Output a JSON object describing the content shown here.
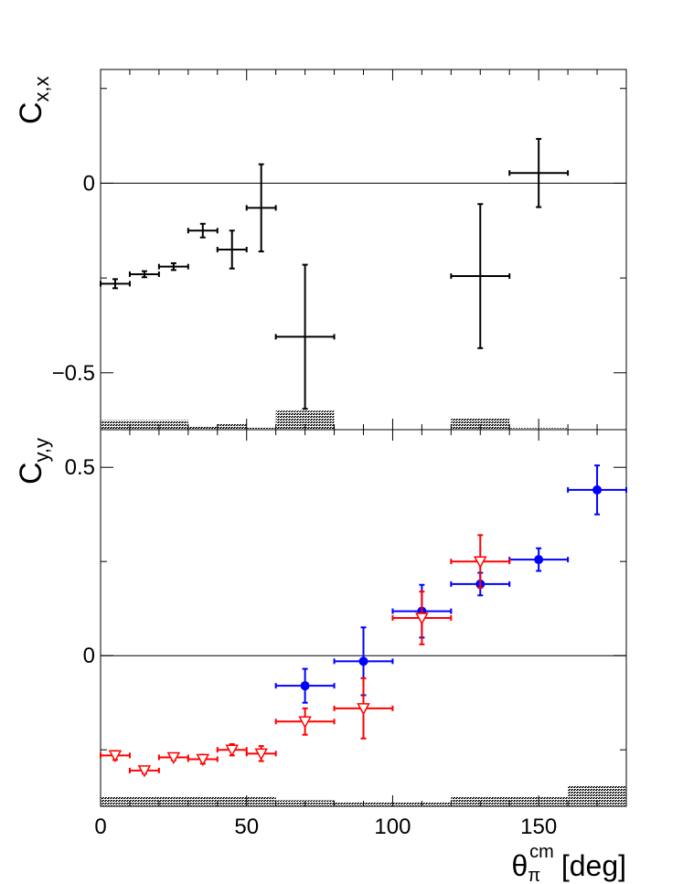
{
  "chart_data": [
    {
      "type": "scatter",
      "ylabel": "C",
      "ylabel_sub": "x,x",
      "xlim": [
        0,
        180
      ],
      "ylim": [
        -0.65,
        0.3
      ],
      "y_ticks": [
        -0.5,
        0
      ],
      "y_tick_labels": [
        "−0.5",
        "0"
      ],
      "zero_line": true,
      "series": [
        {
          "color": "#000000",
          "marker": "none",
          "points": [
            {
              "x": 5,
              "xerr": 5,
              "y": -0.265,
              "yerr": 0.012
            },
            {
              "x": 15,
              "xerr": 5,
              "y": -0.24,
              "yerr": 0.008
            },
            {
              "x": 25,
              "xerr": 5,
              "y": -0.22,
              "yerr": 0.009
            },
            {
              "x": 35,
              "xerr": 5,
              "y": -0.125,
              "yerr": 0.018
            },
            {
              "x": 45,
              "xerr": 5,
              "y": -0.175,
              "yerr": 0.05
            },
            {
              "x": 55,
              "xerr": 5,
              "y": -0.065,
              "yerr": 0.115
            },
            {
              "x": 70,
              "xerr": 10,
              "y": -0.405,
              "yerr": 0.19
            },
            {
              "x": 130,
              "xerr": 10,
              "y": -0.245,
              "yerr": 0.19
            },
            {
              "x": 150,
              "xerr": 10,
              "y": 0.027,
              "yerr": 0.09
            }
          ]
        }
      ],
      "systematics": [
        {
          "x0": 0,
          "x1": 30,
          "h": 0.025
        },
        {
          "x0": 30,
          "x1": 40,
          "h": 0.008
        },
        {
          "x0": 40,
          "x1": 50,
          "h": 0.016
        },
        {
          "x0": 50,
          "x1": 60,
          "h": 0.005
        },
        {
          "x0": 60,
          "x1": 80,
          "h": 0.05
        },
        {
          "x0": 120,
          "x1": 140,
          "h": 0.03
        },
        {
          "x0": 140,
          "x1": 160,
          "h": 0.004
        }
      ]
    },
    {
      "type": "scatter",
      "ylabel": "C",
      "ylabel_sub": "y,y",
      "xlabel": "θ",
      "xlabel_sub": "π",
      "xlabel_sup": "cm",
      "xlabel_unit": "[deg]",
      "xlim": [
        0,
        180
      ],
      "ylim": [
        -0.4,
        0.6
      ],
      "x_ticks": [
        0,
        50,
        100,
        150
      ],
      "y_ticks": [
        0,
        0.5
      ],
      "y_tick_labels": [
        "0",
        "0.5"
      ],
      "zero_line": true,
      "series": [
        {
          "color": "#0000ff",
          "marker": "filled-circle",
          "points": [
            {
              "x": 70,
              "xerr": 10,
              "y": -0.08,
              "yerr": 0.045
            },
            {
              "x": 90,
              "xerr": 10,
              "y": -0.015,
              "yerr": 0.09
            },
            {
              "x": 110,
              "xerr": 10,
              "y": 0.118,
              "yerr": 0.07
            },
            {
              "x": 130,
              "xerr": 10,
              "y": 0.19,
              "yerr": 0.03
            },
            {
              "x": 150,
              "xerr": 10,
              "y": 0.255,
              "yerr": 0.03
            },
            {
              "x": 170,
              "xerr": 10,
              "y": 0.44,
              "yerr": 0.065
            }
          ]
        },
        {
          "color": "#ff0000",
          "marker": "open-triangle-down",
          "points": [
            {
              "x": 5,
              "xerr": 5,
              "y": -0.265,
              "yerr": 0.012
            },
            {
              "x": 15,
              "xerr": 5,
              "y": -0.305,
              "yerr": 0.008
            },
            {
              "x": 25,
              "xerr": 5,
              "y": -0.27,
              "yerr": 0.008
            },
            {
              "x": 35,
              "xerr": 5,
              "y": -0.275,
              "yerr": 0.012
            },
            {
              "x": 45,
              "xerr": 5,
              "y": -0.25,
              "yerr": 0.015
            },
            {
              "x": 55,
              "xerr": 5,
              "y": -0.26,
              "yerr": 0.02
            },
            {
              "x": 70,
              "xerr": 10,
              "y": -0.175,
              "yerr": 0.035
            },
            {
              "x": 90,
              "xerr": 10,
              "y": -0.14,
              "yerr": 0.08
            },
            {
              "x": 110,
              "xerr": 10,
              "y": 0.1,
              "yerr": 0.07
            },
            {
              "x": 130,
              "xerr": 10,
              "y": 0.25,
              "yerr": 0.07
            }
          ]
        }
      ],
      "systematics": [
        {
          "x0": 0,
          "x1": 60,
          "h": 0.025
        },
        {
          "x0": 60,
          "x1": 80,
          "h": 0.016
        },
        {
          "x0": 80,
          "x1": 120,
          "h": 0.01
        },
        {
          "x0": 120,
          "x1": 160,
          "h": 0.025
        },
        {
          "x0": 160,
          "x1": 180,
          "h": 0.055
        }
      ]
    }
  ]
}
